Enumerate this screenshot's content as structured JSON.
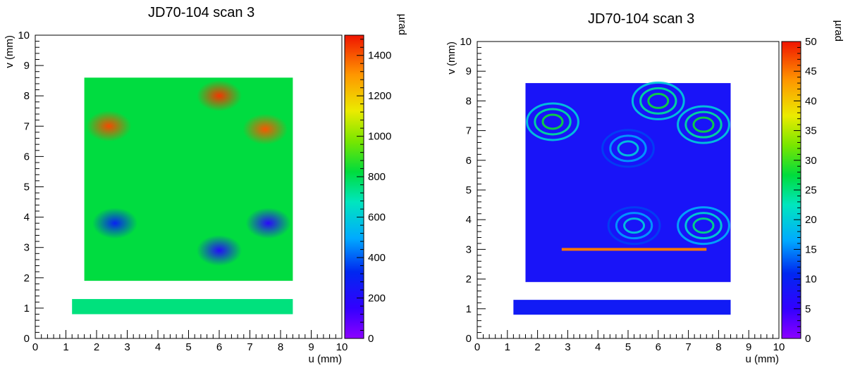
{
  "chart_data": [
    {
      "type": "heatmap",
      "title": "JD70-104 scan 3",
      "xlabel": "u (mm)",
      "ylabel": "v (mm)",
      "colorbar_label": "µrad",
      "xlim": [
        0,
        10
      ],
      "ylim": [
        0,
        10
      ],
      "x_ticks": [
        "0",
        "1",
        "2",
        "3",
        "4",
        "5",
        "6",
        "7",
        "8",
        "9",
        "10"
      ],
      "y_ticks": [
        "0",
        "1",
        "2",
        "3",
        "4",
        "5",
        "6",
        "7",
        "8",
        "9",
        "10"
      ],
      "zlim": [
        0,
        1500
      ],
      "z_ticks": [
        "0",
        "200",
        "400",
        "600",
        "800",
        "1000",
        "1200",
        "1400"
      ],
      "z_tick_values": [
        0,
        200,
        400,
        600,
        800,
        1000,
        1200,
        1400
      ],
      "colormap": "rainbow (violet-blue-cyan-green-yellow-orange-red)",
      "regions": [
        {
          "shape": "rect",
          "u": [
            1.6,
            8.4
          ],
          "v": [
            1.9,
            8.6
          ],
          "value": 820
        },
        {
          "shape": "rect",
          "u": [
            1.2,
            8.4
          ],
          "v": [
            0.8,
            1.3
          ],
          "value": 750
        },
        {
          "shape": "ellipse",
          "u": 2.4,
          "v": 7.0,
          "value": 1420
        },
        {
          "shape": "ellipse",
          "u": 7.5,
          "v": 6.9,
          "value": 1400
        },
        {
          "shape": "ellipse",
          "u": 6.0,
          "v": 8.0,
          "value": 1450
        },
        {
          "shape": "ellipse",
          "u": 2.6,
          "v": 3.8,
          "value": 300
        },
        {
          "shape": "ellipse",
          "u": 7.6,
          "v": 3.8,
          "value": 180
        },
        {
          "shape": "ellipse",
          "u": 6.0,
          "v": 2.9,
          "value": 200
        }
      ]
    },
    {
      "type": "heatmap",
      "title": "JD70-104 scan 3",
      "xlabel": "u (mm)",
      "ylabel": "v (mm)",
      "colorbar_label": "µrad",
      "xlim": [
        0,
        10
      ],
      "ylim": [
        0,
        10
      ],
      "x_ticks": [
        "0",
        "1",
        "2",
        "3",
        "4",
        "5",
        "6",
        "7",
        "8",
        "9",
        "10"
      ],
      "y_ticks": [
        "0",
        "1",
        "2",
        "3",
        "4",
        "5",
        "6",
        "7",
        "8",
        "9",
        "10"
      ],
      "zlim": [
        0,
        50
      ],
      "z_ticks": [
        "0",
        "5",
        "10",
        "15",
        "20",
        "25",
        "30",
        "35",
        "40",
        "45",
        "50"
      ],
      "z_tick_values": [
        0,
        5,
        10,
        15,
        20,
        25,
        30,
        35,
        40,
        45,
        50
      ],
      "colormap": "rainbow (violet-blue-cyan-green-yellow-orange-red)",
      "regions": [
        {
          "shape": "rect",
          "u": [
            1.6,
            8.4
          ],
          "v": [
            1.9,
            8.6
          ],
          "value": 8
        },
        {
          "shape": "rect",
          "u": [
            1.2,
            8.4
          ],
          "v": [
            0.8,
            1.3
          ],
          "value": 9
        },
        {
          "shape": "contour",
          "u": 2.5,
          "v": 7.3,
          "value": 28
        },
        {
          "shape": "contour",
          "u": 7.5,
          "v": 7.2,
          "value": 28
        },
        {
          "shape": "contour",
          "u": 6.0,
          "v": 8.0,
          "value": 28
        },
        {
          "shape": "contour",
          "u": 7.5,
          "v": 3.8,
          "value": 25
        },
        {
          "shape": "contour",
          "u": 5.2,
          "v": 3.8,
          "value": 20
        },
        {
          "shape": "contour",
          "u": 5.0,
          "v": 6.4,
          "value": 20
        },
        {
          "shape": "line",
          "u": [
            2.8,
            7.6
          ],
          "v": 3.0,
          "value": 45
        }
      ]
    }
  ]
}
